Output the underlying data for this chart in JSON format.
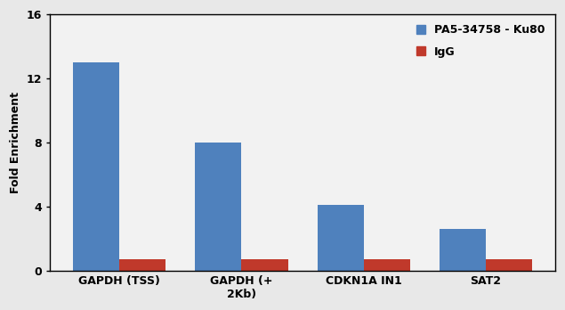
{
  "categories": [
    "GAPDH (TSS)",
    "GAPDH (+\n2Kb)",
    "CDKN1A IN1",
    "SAT2"
  ],
  "blue_values": [
    13.0,
    8.0,
    4.1,
    2.6
  ],
  "red_values": [
    0.75,
    0.75,
    0.75,
    0.75
  ],
  "blue_color": "#4F81BD",
  "red_color": "#C0392B",
  "ylabel": "Fold Enrichment",
  "ylim": [
    0,
    16
  ],
  "yticks": [
    0,
    4,
    8,
    12,
    16
  ],
  "legend_blue": "PA5-34758 - Ku80",
  "legend_red": "IgG",
  "plot_bg_color": "#F2F2F2",
  "fig_bg_color": "#E8E8E8",
  "bar_width": 0.38,
  "axis_fontsize": 9,
  "tick_fontsize": 9,
  "legend_fontsize": 9
}
